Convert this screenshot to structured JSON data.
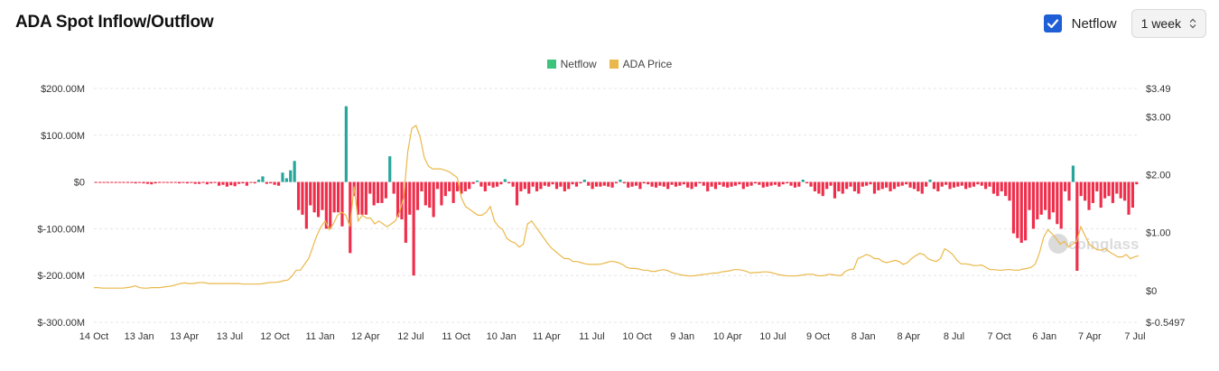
{
  "header": {
    "title": "ADA Spot Inflow/Outflow"
  },
  "controls": {
    "netflow_toggle": {
      "label": "Netflow",
      "checked": true
    },
    "interval": {
      "value": "1 week"
    }
  },
  "watermark": "coinglass",
  "colors": {
    "inflow": "#26a69a",
    "outflow": "#ef2e4b",
    "price": "#eab84a",
    "checkbox": "#1e5fd6",
    "legend_netflow": "#3cc47c"
  },
  "chart_data": {
    "type": "bar",
    "legend": [
      {
        "name": "Netflow",
        "color": "#3cc47c"
      },
      {
        "name": "ADA Price",
        "color": "#eab84a"
      }
    ],
    "x_ticks": [
      "14 Oct",
      "13 Jan",
      "13 Apr",
      "13 Jul",
      "12 Oct",
      "11 Jan",
      "12 Apr",
      "12 Jul",
      "11 Oct",
      "10 Jan",
      "11 Apr",
      "11 Jul",
      "10 Oct",
      "9 Jan",
      "10 Apr",
      "10 Jul",
      "9 Oct",
      "8 Jan",
      "8 Apr",
      "8 Jul",
      "7 Oct",
      "6 Jan",
      "7 Apr",
      "7 Jul"
    ],
    "y_left": {
      "ticks": [
        "$200.00M",
        "$100.00M",
        "$0",
        "$-100.00M",
        "$-200.00M",
        "$-300.00M"
      ],
      "min": -300,
      "max": 200,
      "unit": "M USD"
    },
    "y_right": {
      "ticks": [
        "$3.49",
        "$3.00",
        "$2.00",
        "$1.00",
        "$0",
        "$-0.5497"
      ],
      "min": -0.5497,
      "max": 3.49
    },
    "series": [
      {
        "name": "Netflow",
        "type": "bar",
        "values": [
          -1,
          -1,
          -1,
          -2,
          -1,
          -2,
          -1,
          -1,
          -2,
          -2,
          -3,
          -2,
          -3,
          -4,
          -5,
          -3,
          -2,
          -1,
          -2,
          -2,
          -1,
          -3,
          -2,
          -3,
          -2,
          -4,
          -4,
          -2,
          -5,
          -3,
          -2,
          -8,
          -6,
          -10,
          -7,
          -9,
          -4,
          -3,
          -8,
          -2,
          -3,
          5,
          12,
          -4,
          -3,
          -6,
          -8,
          20,
          8,
          25,
          45,
          -60,
          -70,
          -100,
          -50,
          -65,
          -75,
          -60,
          -100,
          -100,
          -65,
          -65,
          -95,
          162,
          -152,
          -30,
          -70,
          -70,
          -70,
          -25,
          -50,
          -45,
          -45,
          -35,
          55,
          -25,
          -75,
          -80,
          -130,
          -70,
          -200,
          -60,
          -20,
          -50,
          -55,
          -75,
          -15,
          -50,
          -30,
          -20,
          -45,
          -20,
          -25,
          -20,
          -15,
          -4,
          3,
          -10,
          -20,
          -8,
          -12,
          -10,
          -5,
          6,
          -3,
          -10,
          -50,
          -20,
          -15,
          -25,
          -10,
          -20,
          -15,
          -8,
          -10,
          -5,
          -15,
          -10,
          -20,
          -15,
          -5,
          -10,
          -3,
          5,
          -8,
          -15,
          -10,
          -10,
          -8,
          -10,
          -12,
          -3,
          5,
          -3,
          -12,
          -10,
          -8,
          -15,
          -3,
          -5,
          -10,
          -12,
          -8,
          -10,
          -15,
          -6,
          -10,
          -8,
          -5,
          -12,
          -15,
          -10,
          -3,
          -8,
          -20,
          -10,
          -15,
          -6,
          -10,
          -12,
          -10,
          -8,
          -5,
          -15,
          -10,
          -8,
          -3,
          -6,
          -12,
          -10,
          -8,
          -6,
          -10,
          -5,
          -3,
          -8,
          -12,
          -10,
          5,
          -3,
          -10,
          -20,
          -25,
          -30,
          -15,
          -8,
          -35,
          -20,
          -25,
          -15,
          -10,
          -20,
          -25,
          -10,
          -8,
          -5,
          -25,
          -18,
          -15,
          -12,
          -20,
          -15,
          -10,
          -8,
          -5,
          -12,
          -15,
          -20,
          -25,
          -10,
          5,
          -15,
          -20,
          -10,
          -6,
          -15,
          -12,
          -10,
          -8,
          -15,
          -12,
          -10,
          -5,
          -8,
          -15,
          -10,
          -25,
          -30,
          -20,
          -30,
          -40,
          -110,
          -120,
          -130,
          -125,
          -60,
          -100,
          -80,
          -70,
          -60,
          -80,
          -65,
          -90,
          -100,
          -20,
          -40,
          35,
          -190,
          -30,
          -40,
          -60,
          -45,
          -20,
          -55,
          -35,
          -30,
          -45,
          -25,
          -35,
          -40,
          -70,
          -55,
          -5
        ],
        "color_positive": "#26a69a",
        "color_negative": "#ef2e4b"
      },
      {
        "name": "ADA Price",
        "type": "line",
        "values": [
          0.05,
          0.05,
          0.04,
          0.04,
          0.04,
          0.04,
          0.04,
          0.04,
          0.05,
          0.06,
          0.08,
          0.05,
          0.04,
          0.04,
          0.05,
          0.05,
          0.05,
          0.06,
          0.07,
          0.08,
          0.1,
          0.12,
          0.13,
          0.12,
          0.12,
          0.13,
          0.14,
          0.13,
          0.12,
          0.12,
          0.12,
          0.12,
          0.12,
          0.12,
          0.12,
          0.12,
          0.11,
          0.11,
          0.11,
          0.11,
          0.11,
          0.12,
          0.13,
          0.14,
          0.14,
          0.15,
          0.17,
          0.18,
          0.25,
          0.35,
          0.35,
          0.45,
          0.55,
          0.75,
          0.95,
          1.1,
          1.2,
          1.05,
          1.15,
          1.3,
          1.35,
          1.3,
          1.1,
          1.8,
          1.2,
          1.3,
          1.25,
          1.25,
          1.15,
          1.2,
          1.15,
          1.1,
          1.15,
          1.2,
          1.35,
          1.6,
          2.4,
          2.8,
          2.85,
          2.65,
          2.3,
          2.15,
          2.1,
          2.1,
          2.1,
          2.08,
          2.05,
          2.0,
          1.95,
          1.6,
          1.45,
          1.4,
          1.35,
          1.3,
          1.3,
          1.35,
          1.45,
          1.2,
          1.1,
          1.05,
          0.9,
          0.85,
          0.82,
          0.75,
          0.8,
          1.15,
          1.2,
          1.1,
          1.0,
          0.9,
          0.8,
          0.72,
          0.66,
          0.6,
          0.55,
          0.55,
          0.5,
          0.5,
          0.48,
          0.46,
          0.45,
          0.45,
          0.45,
          0.46,
          0.48,
          0.5,
          0.5,
          0.48,
          0.45,
          0.4,
          0.38,
          0.38,
          0.37,
          0.35,
          0.35,
          0.33,
          0.33,
          0.35,
          0.36,
          0.34,
          0.31,
          0.29,
          0.27,
          0.26,
          0.25,
          0.25,
          0.26,
          0.27,
          0.28,
          0.29,
          0.3,
          0.3,
          0.32,
          0.33,
          0.34,
          0.36,
          0.36,
          0.35,
          0.33,
          0.3,
          0.31,
          0.31,
          0.32,
          0.32,
          0.31,
          0.29,
          0.27,
          0.26,
          0.25,
          0.25,
          0.25,
          0.26,
          0.27,
          0.28,
          0.28,
          0.26,
          0.25,
          0.26,
          0.28,
          0.27,
          0.26,
          0.26,
          0.33,
          0.36,
          0.37,
          0.55,
          0.58,
          0.62,
          0.6,
          0.55,
          0.55,
          0.5,
          0.48,
          0.5,
          0.52,
          0.5,
          0.45,
          0.48,
          0.55,
          0.6,
          0.64,
          0.62,
          0.55,
          0.52,
          0.5,
          0.55,
          0.72,
          0.68,
          0.62,
          0.52,
          0.46,
          0.46,
          0.45,
          0.43,
          0.43,
          0.44,
          0.4,
          0.36,
          0.36,
          0.35,
          0.35,
          0.36,
          0.36,
          0.35,
          0.35,
          0.37,
          0.38,
          0.4,
          0.46,
          0.65,
          0.92,
          1.05,
          0.98,
          0.9,
          0.8,
          0.85,
          0.75,
          0.8,
          0.85,
          1.1,
          0.95,
          0.8,
          0.75,
          0.7,
          0.7,
          0.72,
          0.66,
          0.62,
          0.58,
          0.58,
          0.62,
          0.55,
          0.58,
          0.6
        ],
        "color": "#eab84a"
      }
    ]
  }
}
